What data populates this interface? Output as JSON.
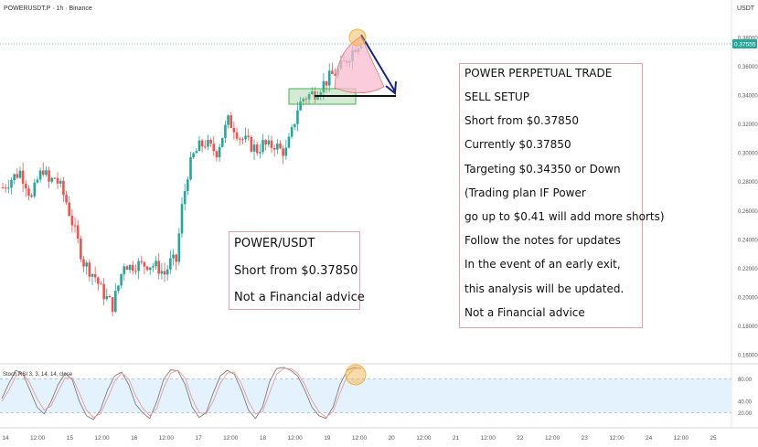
{
  "header": {
    "symbol": "POWERUSDT.P · 1h · Binance",
    "currency": "USDT"
  },
  "price_badge": "0.37555",
  "notes": {
    "left": [
      "POWER/USDT",
      "Short from $0.37850",
      "Not a Financial advice"
    ],
    "right": [
      "POWER PERPETUAL TRADE",
      "SELL SETUP",
      "Short from $0.37850",
      "Currently $0.37850",
      "Targeting $0.34350 or Down",
      "(Trading plan IF Power",
      "go up to $0.41 will add more shorts)",
      "Follow the notes for updates",
      "In the event of an early exit,",
      "this analysis will be updated.",
      "Not a Financial advice"
    ]
  },
  "colors": {
    "up": "#26a69a",
    "down": "#ef5350",
    "annotation_arrow": "#1a237e",
    "pink_fill": "#f8bbd0",
    "box_green": "#4caf50",
    "highlight_orange": "#f5b041",
    "stoch_band": "#e3f2fd",
    "stoch_k": "#7e7e7e",
    "stoch_d": "#ef9a9a"
  },
  "chart_data": [
    {
      "type": "candlestick",
      "y_axis": {
        "ticks": [
          0.38,
          0.36,
          0.34,
          0.32,
          0.3,
          0.28,
          0.26,
          0.24,
          0.22,
          0.2,
          0.18,
          0.16
        ],
        "tick_labels": [
          "0.38000",
          "0.36000",
          "0.34000",
          "0.32000",
          "0.30000",
          "0.28000",
          "0.26000",
          "0.24000",
          "0.22000",
          "0.20000",
          "0.18000",
          "0.16000"
        ],
        "range": [
          0.155,
          0.395
        ]
      },
      "x_axis": {
        "tick_labels": [
          "14",
          "12:00",
          "15",
          "12:00",
          "16",
          "12:00",
          "17",
          "12:00",
          "18",
          "12:00",
          "19",
          "12:00",
          "20",
          "12:00",
          "21",
          "12:00",
          "22",
          "12:00",
          "23",
          "12:00",
          "24",
          "12:00",
          "25"
        ]
      },
      "series": [
        {
          "trend": [
            [
              0,
              0.276
            ],
            [
              3,
              0.282
            ],
            [
              6,
              0.287
            ],
            [
              8,
              0.279
            ],
            [
              10,
              0.268
            ],
            [
              12,
              0.281
            ],
            [
              14,
              0.289
            ],
            [
              16,
              0.279
            ],
            [
              18,
              0.283
            ],
            [
              20,
              0.276
            ],
            [
              22,
              0.266
            ],
            [
              24,
              0.252
            ],
            [
              26,
              0.238
            ],
            [
              28,
              0.224
            ],
            [
              30,
              0.219
            ],
            [
              32,
              0.214
            ],
            [
              34,
              0.205
            ],
            [
              36,
              0.199
            ],
            [
              38,
              0.194
            ],
            [
              40,
              0.208
            ],
            [
              42,
              0.224
            ],
            [
              44,
              0.221
            ],
            [
              46,
              0.223
            ],
            [
              48,
              0.222
            ],
            [
              50,
              0.223
            ],
            [
              52,
              0.222
            ],
            [
              54,
              0.22
            ],
            [
              56,
              0.216
            ],
            [
              58,
              0.224
            ],
            [
              60,
              0.225
            ],
            [
              62,
              0.262
            ],
            [
              64,
              0.286
            ],
            [
              66,
              0.298
            ],
            [
              68,
              0.304
            ],
            [
              70,
              0.307
            ],
            [
              72,
              0.303
            ],
            [
              74,
              0.301
            ],
            [
              76,
              0.312
            ],
            [
              78,
              0.322
            ],
            [
              80,
              0.318
            ],
            [
              82,
              0.311
            ],
            [
              84,
              0.308
            ],
            [
              86,
              0.305
            ],
            [
              88,
              0.302
            ],
            [
              90,
              0.306
            ],
            [
              92,
              0.304
            ],
            [
              94,
              0.306
            ],
            [
              96,
              0.302
            ],
            [
              98,
              0.301
            ],
            [
              100,
              0.314
            ],
            [
              102,
              0.331
            ],
            [
              104,
              0.338
            ],
            [
              106,
              0.34
            ],
            [
              108,
              0.342
            ],
            [
              110,
              0.346
            ],
            [
              112,
              0.35
            ],
            [
              114,
              0.354
            ],
            [
              116,
              0.357
            ],
            [
              118,
              0.362
            ],
            [
              120,
              0.368
            ],
            [
              122,
              0.374
            ],
            [
              124,
              0.378
            ]
          ]
        }
      ],
      "target_line": 0.3435,
      "entry": 0.3785,
      "current": 0.37555
    },
    {
      "type": "line",
      "title": "Stoch RSI 3, 3, 14, 14, close",
      "y_axis": {
        "ticks": [
          80,
          40,
          20
        ],
        "tick_labels": [
          "80.00",
          "40.00",
          "20.00"
        ],
        "range": [
          0,
          100
        ],
        "band": [
          20,
          80
        ]
      },
      "series": [
        {
          "values": [
            45,
            72,
            95,
            88,
            60,
            30,
            18,
            40,
            70,
            90,
            78,
            40,
            15,
            8,
            25,
            60,
            85,
            92,
            70,
            35,
            20,
            10,
            40,
            80,
            96,
            94,
            70,
            30,
            12,
            20,
            55,
            85,
            95,
            88,
            60,
            25,
            10,
            30,
            75,
            98,
            100,
            95,
            85,
            60,
            30,
            15,
            10,
            30,
            70,
            95,
            100,
            98
          ]
        },
        {
          "values": [
            40,
            60,
            85,
            90,
            72,
            45,
            25,
            32,
            58,
            82,
            82,
            55,
            25,
            12,
            18,
            45,
            75,
            90,
            80,
            50,
            28,
            15,
            28,
            65,
            90,
            95,
            82,
            45,
            20,
            18,
            40,
            72,
            90,
            92,
            72,
            40,
            18,
            22,
            55,
            88,
            98,
            98,
            90,
            70,
            42,
            22,
            12,
            22,
            55,
            85,
            98,
            99
          ]
        }
      ]
    }
  ]
}
